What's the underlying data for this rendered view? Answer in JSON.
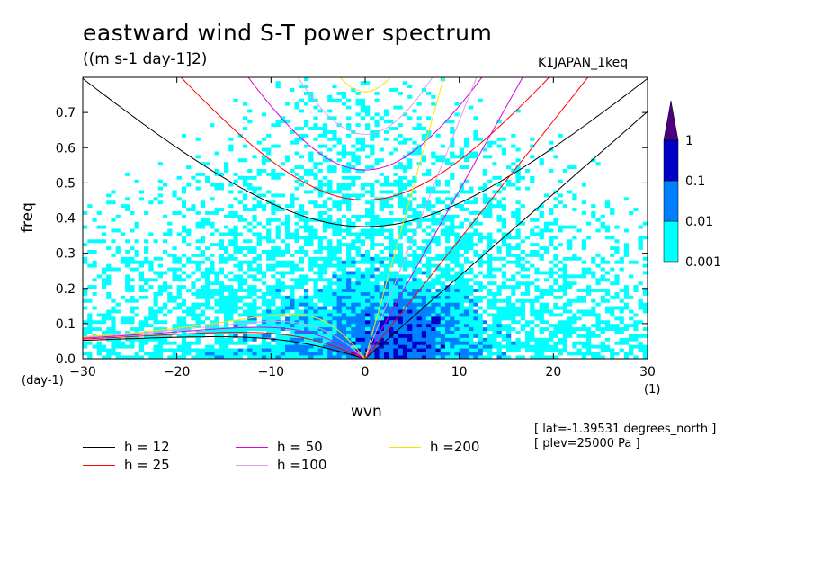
{
  "chart_data": {
    "type": "heatmap",
    "title": "eastward wind S-T power spectrum",
    "units_label": "((m s-1 day-1]2)",
    "dataset_label": "K1JAPAN_1keq",
    "xlabel": "wvn",
    "ylabel": "freq",
    "x_unit_label": "(1)",
    "y_unit_label": "(day-1)",
    "xlim": [
      -30,
      30
    ],
    "ylim": [
      0,
      0.8
    ],
    "x_ticks": [
      -30,
      -20,
      -10,
      0,
      10,
      20,
      30
    ],
    "x_tick_labels": [
      "−30",
      "−20",
      "−10",
      "0",
      "10",
      "20",
      "30"
    ],
    "y_ticks": [
      0,
      0.1,
      0.2,
      0.3,
      0.4,
      0.5,
      0.6,
      0.7
    ],
    "y_tick_labels": [
      "0.0",
      "0.1",
      "0.2",
      "0.3",
      "0.4",
      "0.5",
      "0.6",
      "0.7"
    ],
    "color_levels": [
      0.001,
      0.01,
      0.1,
      1
    ],
    "color_level_labels": [
      "0.001",
      "0.01",
      "0.1",
      "1"
    ],
    "color_fills": [
      "#ffffff",
      "#00ffff",
      "#0080ff",
      "#0000c8",
      "#4b0082"
    ],
    "contour_description_only": false,
    "dispersion_curves": [
      {
        "label": "h = 12",
        "h": 12,
        "color": "#000000"
      },
      {
        "label": "h = 25",
        "h": 25,
        "color": "#ff0000"
      },
      {
        "label": "h = 50",
        "h": 50,
        "color": "#e000e0"
      },
      {
        "label": "h =100",
        "h": 100,
        "color": "#d8a0e8"
      },
      {
        "label": "h =200",
        "h": 200,
        "color": "#ffe000"
      }
    ],
    "annotations": [
      "[ lat=-1.39531 degrees_north ]",
      "[ plev=25000 Pa ]"
    ]
  }
}
